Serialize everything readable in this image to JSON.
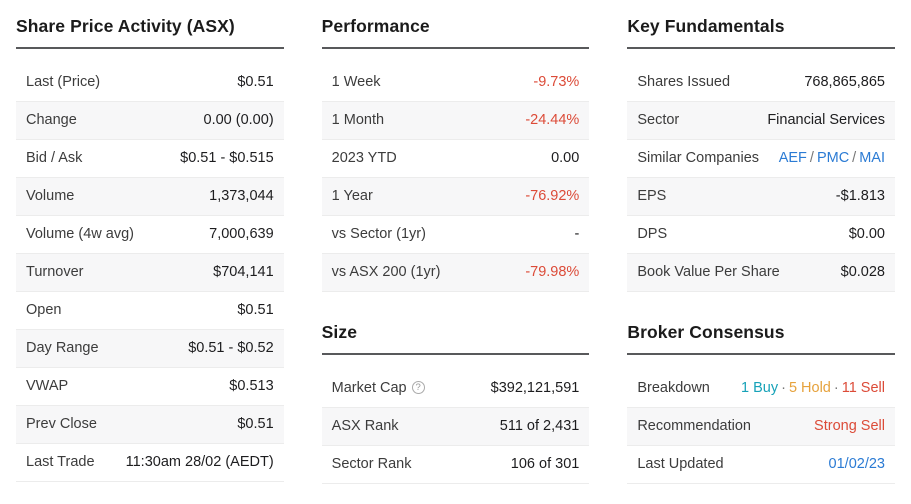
{
  "colors": {
    "negative": "#dc4b38",
    "link": "#2b7bd4",
    "buy": "#17a2b8",
    "hold": "#e6a23c",
    "sell": "#dc4b38",
    "header_underline": "#58595b",
    "row_stripe": "#f7f7f8"
  },
  "share_price": {
    "title": "Share Price Activity (ASX)",
    "rows": [
      {
        "label": "Last (Price)",
        "value": "$0.51"
      },
      {
        "label": "Change",
        "value": "0.00 (0.00)"
      },
      {
        "label": "Bid / Ask",
        "value": "$0.51 - $0.515"
      },
      {
        "label": "Volume",
        "value": "1,373,044"
      },
      {
        "label": "Volume (4w avg)",
        "value": "7,000,639"
      },
      {
        "label": "Turnover",
        "value": "$704,141"
      },
      {
        "label": "Open",
        "value": "$0.51"
      },
      {
        "label": "Day Range",
        "value": "$0.51 - $0.52"
      },
      {
        "label": "VWAP",
        "value": "$0.513"
      },
      {
        "label": "Prev Close",
        "value": "$0.51"
      },
      {
        "label": "Last Trade",
        "value": "11:30am 28/02 (AEDT)"
      }
    ]
  },
  "performance": {
    "title": "Performance",
    "rows": [
      {
        "label": "1 Week",
        "value": "-9.73%"
      },
      {
        "label": "1 Month",
        "value": "-24.44%"
      },
      {
        "label": "2023 YTD",
        "value": "0.00"
      },
      {
        "label": "1 Year",
        "value": "-76.92%"
      },
      {
        "label": "vs Sector (1yr)",
        "value": "-"
      },
      {
        "label": "vs ASX 200 (1yr)",
        "value": "-79.98%"
      }
    ]
  },
  "size": {
    "title": "Size",
    "help_icon": "?",
    "rows": [
      {
        "label": "Market Cap",
        "value": "$392,121,591"
      },
      {
        "label": "ASX Rank",
        "value": "511 of 2,431"
      },
      {
        "label": "Sector Rank",
        "value": "106 of 301"
      }
    ]
  },
  "fundamentals": {
    "title": "Key Fundamentals",
    "rows": [
      {
        "label": "Shares Issued",
        "value": "768,865,865"
      },
      {
        "label": "Sector",
        "value": "Financial Services"
      },
      {
        "label": "Similar Companies",
        "links": [
          "AEF",
          "PMC",
          "MAI"
        ],
        "separator": "/"
      },
      {
        "label": "EPS",
        "value": "-$1.813"
      },
      {
        "label": "DPS",
        "value": "$0.00"
      },
      {
        "label": "Book Value Per Share",
        "value": "$0.028"
      }
    ]
  },
  "broker": {
    "title": "Broker Consensus",
    "breakdown": {
      "label": "Breakdown",
      "buy": "1 Buy",
      "hold": "5 Hold",
      "sell": "11 Sell",
      "separator": "·"
    },
    "recommendation": {
      "label": "Recommendation",
      "value": "Strong Sell"
    },
    "last_updated": {
      "label": "Last Updated",
      "value": "01/02/23"
    }
  }
}
